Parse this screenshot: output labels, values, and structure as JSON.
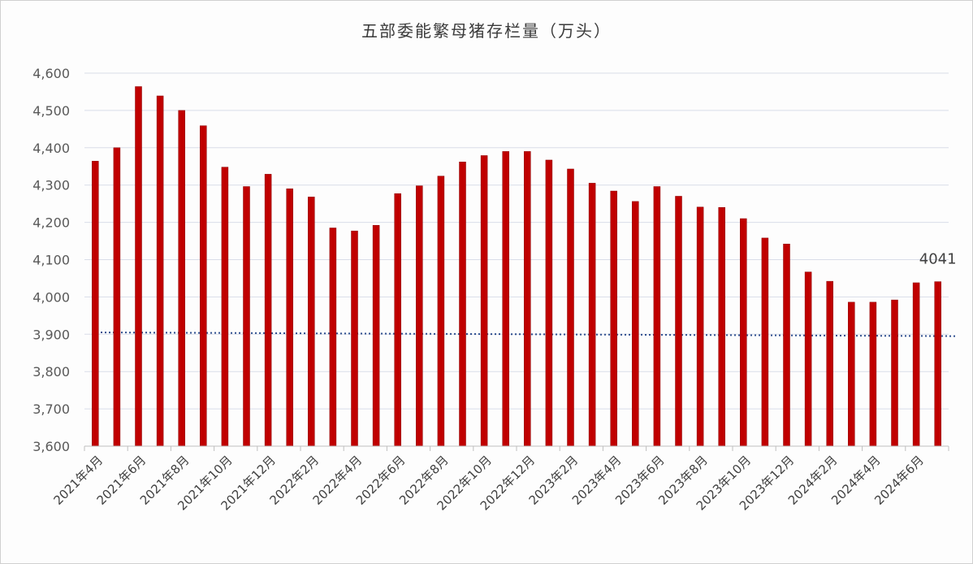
{
  "chart_data": {
    "type": "bar",
    "title": "五部委能繁母猪存栏量（万头）",
    "xlabel": "",
    "ylabel": "",
    "ylim": [
      3600,
      4600
    ],
    "yticks": [
      3600,
      3700,
      3800,
      3900,
      4000,
      4100,
      4200,
      4300,
      4400,
      4500,
      4600
    ],
    "ytick_labels": [
      "3,600",
      "3,700",
      "3,800",
      "3,900",
      "4,000",
      "4,100",
      "4,200",
      "4,300",
      "4,400",
      "4,500",
      "4,600"
    ],
    "grid": true,
    "bar_color": "#c00000",
    "reference_line": {
      "style": "dotted",
      "color": "#2f4f8f",
      "start": 3905,
      "end": 3895
    },
    "categories": [
      "2021年4月",
      "2021年5月",
      "2021年6月",
      "2021年7月",
      "2021年8月",
      "2021年9月",
      "2021年10月",
      "2021年11月",
      "2021年12月",
      "2022年1月",
      "2022年2月",
      "2022年3月",
      "2022年4月",
      "2022年5月",
      "2022年6月",
      "2022年7月",
      "2022年8月",
      "2022年9月",
      "2022年10月",
      "2022年11月",
      "2022年12月",
      "2023年1月",
      "2023年2月",
      "2023年3月",
      "2023年4月",
      "2023年5月",
      "2023年6月",
      "2023年7月",
      "2023年8月",
      "2023年9月",
      "2023年10月",
      "2023年11月",
      "2023年12月",
      "2024年1月",
      "2024年2月",
      "2024年3月",
      "2024年4月",
      "2024年5月",
      "2024年6月",
      "2024年7月"
    ],
    "tick_labels_shown": [
      "2021年4月",
      "2021年6月",
      "2021年8月",
      "2021年10月",
      "2021年12月",
      "2022年2月",
      "2022年4月",
      "2022年6月",
      "2022年8月",
      "2022年10月",
      "2022年12月",
      "2023年2月",
      "2023年4月",
      "2023年6月",
      "2023年8月",
      "2023年10月",
      "2023年12月",
      "2024年2月",
      "2024年4月",
      "2024年6月"
    ],
    "values": [
      4364,
      4400,
      4564,
      4539,
      4500,
      4459,
      4348,
      4296,
      4329,
      4290,
      4268,
      4185,
      4177,
      4192,
      4277,
      4298,
      4324,
      4362,
      4379,
      4390,
      4390,
      4367,
      4343,
      4305,
      4284,
      4256,
      4296,
      4270,
      4241,
      4240,
      4210,
      4158,
      4142,
      4067,
      4042,
      3986,
      3986,
      3992,
      4038,
      4041
    ],
    "annotations": [
      {
        "category": "2024年7月",
        "text": "4041"
      }
    ]
  }
}
